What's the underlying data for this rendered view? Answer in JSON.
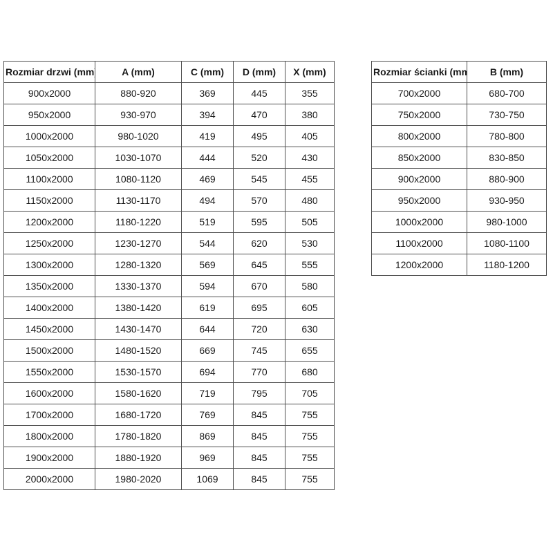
{
  "page": {
    "background_color": "#ffffff",
    "text_color": "#1a1a1a",
    "border_color": "#4d4d4d"
  },
  "door_table": {
    "headers": [
      "Rozmiar drzwi (mm)",
      "A (mm)",
      "C (mm)",
      "D (mm)",
      "X (mm)"
    ],
    "rows": [
      [
        "900x2000",
        "880-920",
        "369",
        "445",
        "355"
      ],
      [
        "950x2000",
        "930-970",
        "394",
        "470",
        "380"
      ],
      [
        "1000x2000",
        "980-1020",
        "419",
        "495",
        "405"
      ],
      [
        "1050x2000",
        "1030-1070",
        "444",
        "520",
        "430"
      ],
      [
        "1100x2000",
        "1080-1120",
        "469",
        "545",
        "455"
      ],
      [
        "1150x2000",
        "1130-1170",
        "494",
        "570",
        "480"
      ],
      [
        "1200x2000",
        "1180-1220",
        "519",
        "595",
        "505"
      ],
      [
        "1250x2000",
        "1230-1270",
        "544",
        "620",
        "530"
      ],
      [
        "1300x2000",
        "1280-1320",
        "569",
        "645",
        "555"
      ],
      [
        "1350x2000",
        "1330-1370",
        "594",
        "670",
        "580"
      ],
      [
        "1400x2000",
        "1380-1420",
        "619",
        "695",
        "605"
      ],
      [
        "1450x2000",
        "1430-1470",
        "644",
        "720",
        "630"
      ],
      [
        "1500x2000",
        "1480-1520",
        "669",
        "745",
        "655"
      ],
      [
        "1550x2000",
        "1530-1570",
        "694",
        "770",
        "680"
      ],
      [
        "1600x2000",
        "1580-1620",
        "719",
        "795",
        "705"
      ],
      [
        "1700x2000",
        "1680-1720",
        "769",
        "845",
        "755"
      ],
      [
        "1800x2000",
        "1780-1820",
        "869",
        "845",
        "755"
      ],
      [
        "1900x2000",
        "1880-1920",
        "969",
        "845",
        "755"
      ],
      [
        "2000x2000",
        "1980-2020",
        "1069",
        "845",
        "755"
      ]
    ]
  },
  "wall_table": {
    "headers": [
      "Rozmiar ścianki (mm)",
      "B (mm)"
    ],
    "rows": [
      [
        "700x2000",
        "680-700"
      ],
      [
        "750x2000",
        "730-750"
      ],
      [
        "800x2000",
        "780-800"
      ],
      [
        "850x2000",
        "830-850"
      ],
      [
        "900x2000",
        "880-900"
      ],
      [
        "950x2000",
        "930-950"
      ],
      [
        "1000x2000",
        "980-1000"
      ],
      [
        "1100x2000",
        "1080-1100"
      ],
      [
        "1200x2000",
        "1180-1200"
      ]
    ]
  }
}
